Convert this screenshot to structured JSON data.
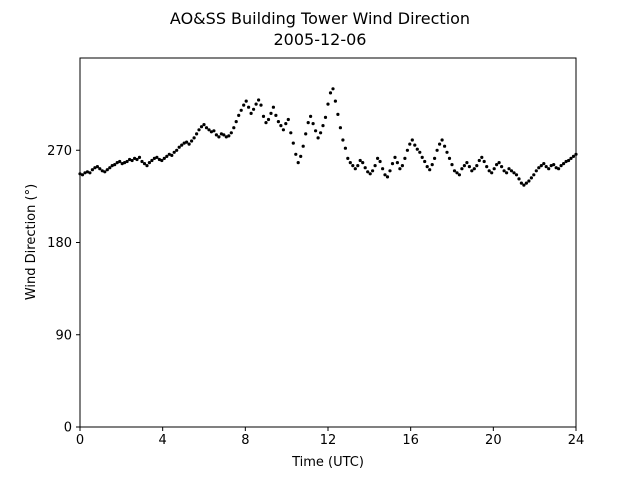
{
  "chart_data": {
    "type": "scatter",
    "title": "AO&SS Building Tower Wind Direction",
    "subtitle": "2005-12-06",
    "xlabel": "Time (UTC)",
    "ylabel": "Wind Direction (°)",
    "xlim": [
      0,
      24
    ],
    "ylim": [
      0,
      360
    ],
    "xticks": [
      0,
      4,
      8,
      12,
      16,
      20,
      24
    ],
    "yticks": [
      0,
      90,
      180,
      270
    ],
    "grid": false,
    "marker_color": "#000000",
    "x": [
      0.0,
      0.12,
      0.24,
      0.36,
      0.48,
      0.6,
      0.72,
      0.84,
      0.96,
      1.08,
      1.2,
      1.32,
      1.44,
      1.56,
      1.68,
      1.8,
      1.92,
      2.04,
      2.16,
      2.28,
      2.4,
      2.52,
      2.64,
      2.76,
      2.88,
      3.0,
      3.12,
      3.24,
      3.36,
      3.48,
      3.6,
      3.72,
      3.84,
      3.96,
      4.08,
      4.2,
      4.32,
      4.44,
      4.56,
      4.68,
      4.8,
      4.92,
      5.04,
      5.16,
      5.28,
      5.4,
      5.52,
      5.64,
      5.76,
      5.88,
      6.0,
      6.12,
      6.24,
      6.36,
      6.48,
      6.6,
      6.72,
      6.84,
      6.96,
      7.08,
      7.2,
      7.32,
      7.44,
      7.56,
      7.68,
      7.8,
      7.92,
      8.04,
      8.16,
      8.28,
      8.4,
      8.52,
      8.64,
      8.76,
      8.88,
      9.0,
      9.12,
      9.24,
      9.36,
      9.48,
      9.6,
      9.72,
      9.84,
      9.96,
      10.08,
      10.2,
      10.32,
      10.44,
      10.56,
      10.68,
      10.8,
      10.92,
      11.04,
      11.16,
      11.28,
      11.4,
      11.52,
      11.64,
      11.76,
      11.88,
      12.0,
      12.12,
      12.24,
      12.36,
      12.48,
      12.6,
      12.72,
      12.84,
      12.96,
      13.08,
      13.2,
      13.32,
      13.44,
      13.56,
      13.68,
      13.8,
      13.92,
      14.04,
      14.16,
      14.28,
      14.4,
      14.52,
      14.64,
      14.76,
      14.88,
      15.0,
      15.12,
      15.24,
      15.36,
      15.48,
      15.6,
      15.72,
      15.84,
      15.96,
      16.08,
      16.2,
      16.32,
      16.44,
      16.56,
      16.68,
      16.8,
      16.92,
      17.04,
      17.16,
      17.28,
      17.4,
      17.52,
      17.64,
      17.76,
      17.88,
      18.0,
      18.12,
      18.24,
      18.36,
      18.48,
      18.6,
      18.72,
      18.84,
      18.96,
      19.08,
      19.2,
      19.32,
      19.44,
      19.56,
      19.68,
      19.8,
      19.92,
      20.04,
      20.16,
      20.28,
      20.4,
      20.52,
      20.64,
      20.76,
      20.88,
      21.0,
      21.12,
      21.24,
      21.36,
      21.48,
      21.6,
      21.72,
      21.84,
      21.96,
      22.08,
      22.2,
      22.32,
      22.44,
      22.56,
      22.68,
      22.8,
      22.92,
      23.04,
      23.16,
      23.28,
      23.4,
      23.52,
      23.64,
      23.76,
      23.88,
      24.0
    ],
    "y": [
      247,
      246,
      248,
      249,
      248,
      251,
      253,
      254,
      252,
      250,
      249,
      251,
      253,
      255,
      256,
      258,
      259,
      257,
      258,
      259,
      261,
      260,
      262,
      261,
      263,
      259,
      257,
      255,
      258,
      260,
      262,
      263,
      261,
      260,
      262,
      264,
      266,
      265,
      268,
      270,
      273,
      275,
      277,
      278,
      276,
      279,
      282,
      286,
      290,
      293,
      295,
      292,
      290,
      288,
      289,
      285,
      283,
      286,
      285,
      283,
      284,
      287,
      292,
      298,
      304,
      309,
      314,
      318,
      312,
      306,
      310,
      315,
      319,
      314,
      303,
      297,
      300,
      306,
      312,
      304,
      298,
      294,
      290,
      296,
      300,
      287,
      277,
      266,
      258,
      264,
      274,
      286,
      297,
      303,
      296,
      289,
      282,
      287,
      294,
      302,
      315,
      326,
      330,
      318,
      305,
      292,
      280,
      272,
      262,
      258,
      255,
      252,
      255,
      260,
      258,
      253,
      249,
      247,
      250,
      255,
      262,
      259,
      252,
      246,
      244,
      250,
      257,
      263,
      258,
      252,
      255,
      262,
      270,
      276,
      280,
      275,
      271,
      268,
      263,
      259,
      254,
      251,
      256,
      262,
      270,
      276,
      280,
      274,
      268,
      262,
      256,
      250,
      248,
      246,
      252,
      255,
      258,
      254,
      250,
      252,
      255,
      260,
      263,
      259,
      254,
      250,
      248,
      252,
      256,
      258,
      254,
      250,
      248,
      252,
      250,
      248,
      246,
      242,
      238,
      236,
      238,
      240,
      243,
      246,
      250,
      253,
      255,
      257,
      254,
      252,
      255,
      256,
      253,
      252,
      255,
      257,
      259,
      260,
      262,
      264,
      266
    ]
  }
}
